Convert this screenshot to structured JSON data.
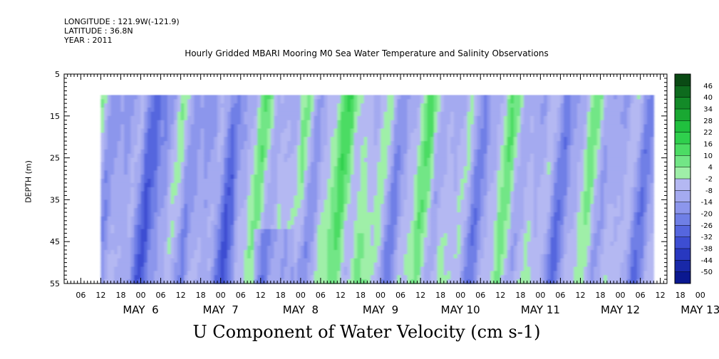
{
  "header": {
    "longitude": "LONGITUDE : 121.9W(-121.9)",
    "latitude": "LATITUDE : 36.8N",
    "year": "YEAR : 2011"
  },
  "chart_data": {
    "type": "heatmap",
    "title": "Hourly Gridded MBARI Mooring M0 Sea Water Temperature and Salinity Observations",
    "variable_label": "U Component of Water Velocity (cm s-1)",
    "ylabel": "DEPTH (m)",
    "y_ticks": [
      "5",
      "15",
      "25",
      "35",
      "45",
      "55"
    ],
    "y_values": [
      5,
      15,
      25,
      35,
      45,
      55
    ],
    "ylim": [
      5,
      55
    ],
    "y_inverted": true,
    "data_depth_range": [
      10,
      55
    ],
    "x_hour_labels": [
      "06",
      "12",
      "18",
      "00",
      "06",
      "12",
      "18",
      "00",
      "06",
      "12",
      "18",
      "00",
      "06",
      "12",
      "18",
      "00",
      "06",
      "12",
      "18",
      "00",
      "06",
      "12",
      "18",
      "00",
      "06",
      "12",
      "18",
      "00",
      "06",
      "12",
      "18",
      "00"
    ],
    "x_day_labels": [
      "MAY  6",
      "MAY  7",
      "MAY  8",
      "MAY  9",
      "MAY 10",
      "MAY 11",
      "MAY 12",
      "MAY 13"
    ],
    "x_range_hours_from_may6_00": [
      -11,
      170
    ],
    "data_start_hour": 0,
    "data_end_hour": 166,
    "colorbar": {
      "labels": [
        "46",
        "40",
        "34",
        "28",
        "22",
        "16",
        "10",
        "4",
        "-2",
        "-8",
        "-14",
        "-20",
        "-26",
        "-32",
        "-38",
        "-44",
        "-50"
      ],
      "values": [
        46,
        40,
        34,
        28,
        22,
        16,
        10,
        4,
        -2,
        -8,
        -14,
        -20,
        -26,
        -32,
        -38,
        -44,
        -50
      ],
      "colors_high_to_low": [
        "#0a4a14",
        "#0e6b1e",
        "#138a28",
        "#19a832",
        "#20c03e",
        "#2fd04d",
        "#4cdc64",
        "#72e686",
        "#9fefa8",
        "#b4b8f2",
        "#a4aaf0",
        "#8c96ec",
        "#6f7fe6",
        "#5566de",
        "#3d4ed2",
        "#2838c0",
        "#1828a8",
        "#0a1890"
      ]
    }
  }
}
